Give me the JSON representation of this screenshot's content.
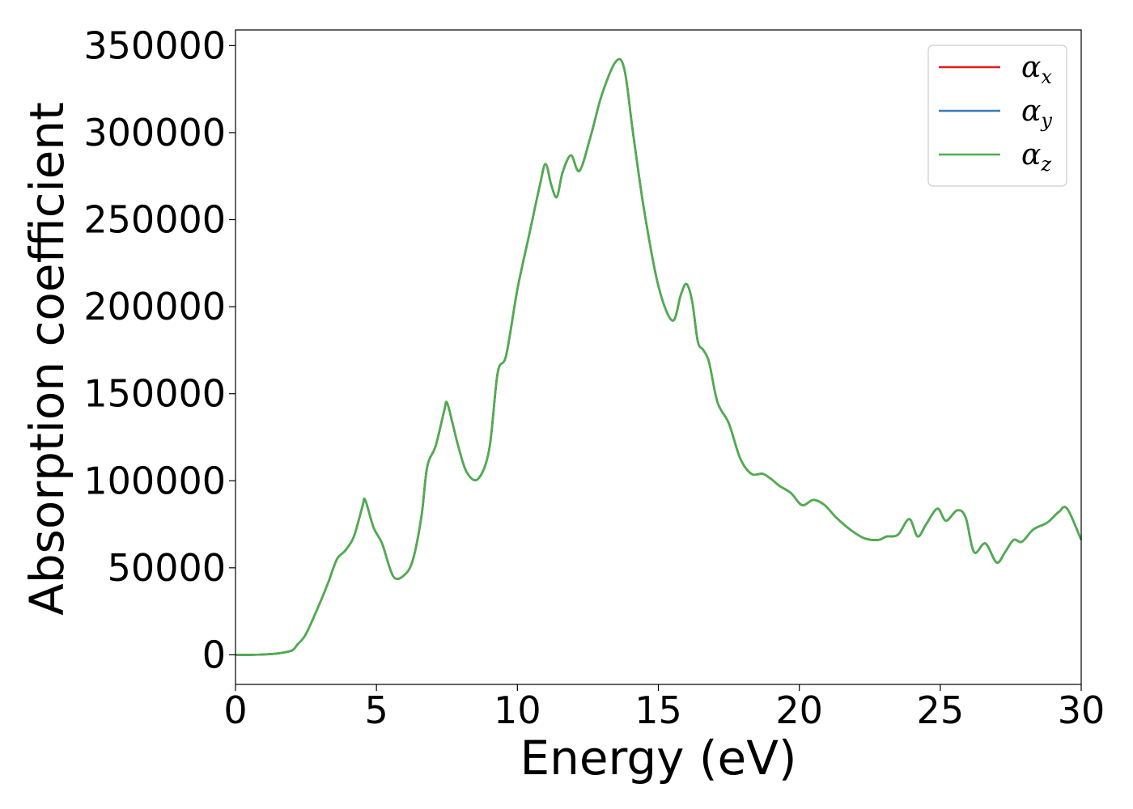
{
  "chart_data": {
    "type": "line",
    "title": "",
    "xlabel": "Energy (eV)",
    "ylabel": "Absorption coefficient",
    "xlim": [
      0,
      30
    ],
    "ylim": [
      -17000,
      359000
    ],
    "xticks": [
      0,
      5,
      10,
      15,
      20,
      25,
      30
    ],
    "yticks": [
      0,
      50000,
      100000,
      150000,
      200000,
      250000,
      300000,
      350000
    ],
    "grid": false,
    "legend": {
      "position": "top-right"
    },
    "series": [
      {
        "name": "αx",
        "symbol": "α",
        "subscript": "x",
        "color": "#e41a1c",
        "x": [
          0,
          0.5,
          1.0,
          1.5,
          2.0,
          2.2,
          2.5,
          3.0,
          3.3,
          3.6,
          3.9,
          4.2,
          4.5,
          4.6,
          4.9,
          5.2,
          5.6,
          6.0,
          6.3,
          6.6,
          6.8,
          7.1,
          7.4,
          7.5,
          7.7,
          7.9,
          8.2,
          8.6,
          9.0,
          9.3,
          9.6,
          10.0,
          10.4,
          10.8,
          11.0,
          11.2,
          11.4,
          11.6,
          11.9,
          12.2,
          12.6,
          13.0,
          13.5,
          13.8,
          14.1,
          14.5,
          15.0,
          15.5,
          15.8,
          16.0,
          16.2,
          16.4,
          16.6,
          16.8,
          17.1,
          17.5,
          17.9,
          18.3,
          18.7,
          19.0,
          19.3,
          19.7,
          20.1,
          20.5,
          20.9,
          21.3,
          21.8,
          22.3,
          22.8,
          23.1,
          23.5,
          23.9,
          24.2,
          24.5,
          24.9,
          25.2,
          25.6,
          25.9,
          26.2,
          26.6,
          27.0,
          27.3,
          27.6,
          27.9,
          28.3,
          28.8,
          29.2,
          29.5,
          30.0
        ],
        "values": [
          0,
          0,
          200,
          800,
          2500,
          6000,
          12000,
          30000,
          42000,
          55000,
          60000,
          68000,
          85000,
          89000,
          73000,
          64000,
          45000,
          46000,
          55000,
          80000,
          108000,
          120000,
          140000,
          145000,
          133000,
          120000,
          105000,
          101000,
          118000,
          162000,
          172000,
          210000,
          240000,
          270000,
          282000,
          270000,
          263000,
          277000,
          287000,
          278000,
          298000,
          322000,
          341000,
          336000,
          300000,
          255000,
          212000,
          192000,
          207000,
          213000,
          203000,
          180000,
          175000,
          168000,
          145000,
          133000,
          113000,
          104000,
          104000,
          101000,
          97000,
          93000,
          86000,
          89000,
          86000,
          79000,
          72000,
          67000,
          66000,
          68000,
          69000,
          78000,
          68000,
          75000,
          84000,
          77000,
          83000,
          79000,
          59000,
          64000,
          53000,
          59000,
          66000,
          65000,
          72000,
          76000,
          82000,
          84000,
          66000
        ]
      },
      {
        "name": "αy",
        "symbol": "α",
        "subscript": "y",
        "color": "#377eb8",
        "x": [
          0,
          0.5,
          1.0,
          1.5,
          2.0,
          2.2,
          2.5,
          3.0,
          3.3,
          3.6,
          3.9,
          4.2,
          4.5,
          4.6,
          4.9,
          5.2,
          5.6,
          6.0,
          6.3,
          6.6,
          6.8,
          7.1,
          7.4,
          7.5,
          7.7,
          7.9,
          8.2,
          8.6,
          9.0,
          9.3,
          9.6,
          10.0,
          10.4,
          10.8,
          11.0,
          11.2,
          11.4,
          11.6,
          11.9,
          12.2,
          12.6,
          13.0,
          13.5,
          13.8,
          14.1,
          14.5,
          15.0,
          15.5,
          15.8,
          16.0,
          16.2,
          16.4,
          16.6,
          16.8,
          17.1,
          17.5,
          17.9,
          18.3,
          18.7,
          19.0,
          19.3,
          19.7,
          20.1,
          20.5,
          20.9,
          21.3,
          21.8,
          22.3,
          22.8,
          23.1,
          23.5,
          23.9,
          24.2,
          24.5,
          24.9,
          25.2,
          25.6,
          25.9,
          26.2,
          26.6,
          27.0,
          27.3,
          27.6,
          27.9,
          28.3,
          28.8,
          29.2,
          29.5,
          30.0
        ],
        "values": [
          0,
          0,
          200,
          800,
          2500,
          6000,
          12000,
          30000,
          42000,
          55000,
          60000,
          68000,
          85000,
          89000,
          73000,
          64000,
          45000,
          46000,
          55000,
          80000,
          108000,
          120000,
          140000,
          145000,
          133000,
          120000,
          105000,
          101000,
          118000,
          162000,
          172000,
          210000,
          240000,
          270000,
          282000,
          270000,
          263000,
          277000,
          287000,
          278000,
          298000,
          322000,
          341000,
          336000,
          300000,
          255000,
          212000,
          192000,
          207000,
          213000,
          203000,
          180000,
          175000,
          168000,
          145000,
          133000,
          113000,
          104000,
          104000,
          101000,
          97000,
          93000,
          86000,
          89000,
          86000,
          79000,
          72000,
          67000,
          66000,
          68000,
          69000,
          78000,
          68000,
          75000,
          84000,
          77000,
          83000,
          79000,
          59000,
          64000,
          53000,
          59000,
          66000,
          65000,
          72000,
          76000,
          82000,
          84000,
          66000
        ]
      },
      {
        "name": "αz",
        "symbol": "α",
        "subscript": "z",
        "color": "#4daf4a",
        "x": [
          0,
          0.5,
          1.0,
          1.5,
          2.0,
          2.2,
          2.5,
          3.0,
          3.3,
          3.6,
          3.9,
          4.2,
          4.5,
          4.6,
          4.9,
          5.2,
          5.6,
          6.0,
          6.3,
          6.6,
          6.8,
          7.1,
          7.4,
          7.5,
          7.7,
          7.9,
          8.2,
          8.6,
          9.0,
          9.3,
          9.6,
          10.0,
          10.4,
          10.8,
          11.0,
          11.2,
          11.4,
          11.6,
          11.9,
          12.2,
          12.6,
          13.0,
          13.5,
          13.8,
          14.1,
          14.5,
          15.0,
          15.5,
          15.8,
          16.0,
          16.2,
          16.4,
          16.6,
          16.8,
          17.1,
          17.5,
          17.9,
          18.3,
          18.7,
          19.0,
          19.3,
          19.7,
          20.1,
          20.5,
          20.9,
          21.3,
          21.8,
          22.3,
          22.8,
          23.1,
          23.5,
          23.9,
          24.2,
          24.5,
          24.9,
          25.2,
          25.6,
          25.9,
          26.2,
          26.6,
          27.0,
          27.3,
          27.6,
          27.9,
          28.3,
          28.8,
          29.2,
          29.5,
          30.0
        ],
        "values": [
          0,
          0,
          200,
          800,
          2500,
          6000,
          12000,
          30000,
          42000,
          55000,
          60000,
          68000,
          85000,
          89000,
          73000,
          64000,
          45000,
          46000,
          55000,
          80000,
          108000,
          120000,
          140000,
          145000,
          133000,
          120000,
          105000,
          101000,
          118000,
          162000,
          172000,
          210000,
          240000,
          270000,
          282000,
          270000,
          263000,
          277000,
          287000,
          278000,
          298000,
          322000,
          341000,
          336000,
          300000,
          255000,
          212000,
          192000,
          207000,
          213000,
          203000,
          180000,
          175000,
          168000,
          145000,
          133000,
          113000,
          104000,
          104000,
          101000,
          97000,
          93000,
          86000,
          89000,
          86000,
          79000,
          72000,
          67000,
          66000,
          68000,
          69000,
          78000,
          68000,
          75000,
          84000,
          77000,
          83000,
          79000,
          59000,
          64000,
          53000,
          59000,
          66000,
          65000,
          72000,
          76000,
          82000,
          84000,
          66000
        ]
      }
    ]
  }
}
